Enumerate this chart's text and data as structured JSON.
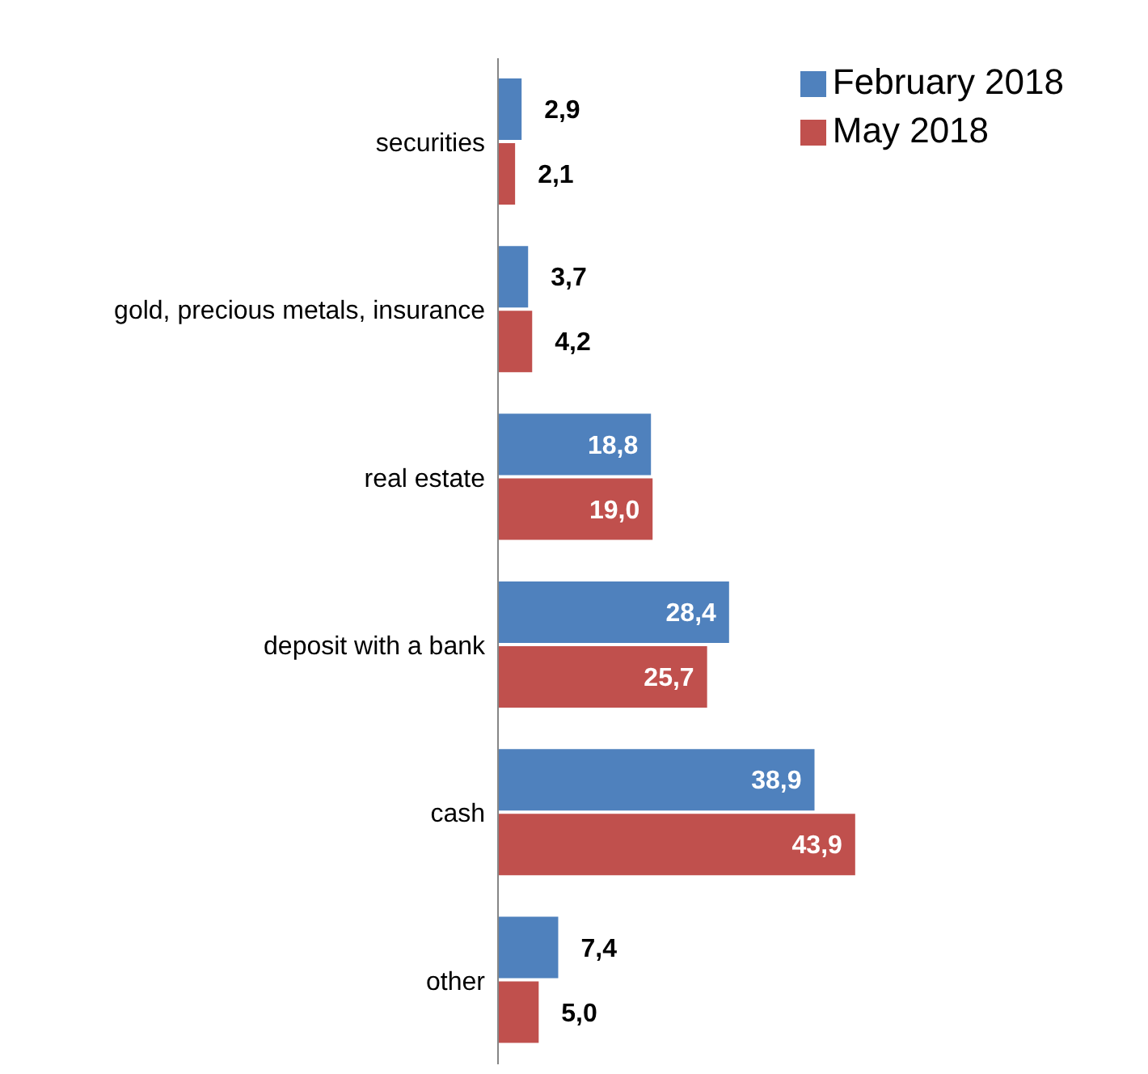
{
  "chart_data": {
    "type": "bar",
    "orientation": "horizontal",
    "legend": "top right",
    "tick_labels": "y",
    "categories": [
      "securities",
      "gold, precious metals, insurance",
      "real estate",
      "deposit with a bank",
      "cash",
      "other"
    ],
    "series": [
      {
        "name": "February 2018",
        "color": "#4f81bd",
        "values": [
          2.9,
          3.7,
          18.8,
          28.4,
          38.9,
          7.4
        ],
        "value_labels": [
          "2,9",
          "3,7",
          "18,8",
          "28,4",
          "38,9",
          "7,4"
        ]
      },
      {
        "name": "May 2018",
        "color": "#c0504d",
        "values": [
          2.1,
          4.2,
          19.0,
          25.7,
          43.9,
          5.0
        ],
        "value_labels": [
          "2,1",
          "4,2",
          "19,0",
          "25,7",
          "43,9",
          "5,0"
        ]
      }
    ]
  }
}
